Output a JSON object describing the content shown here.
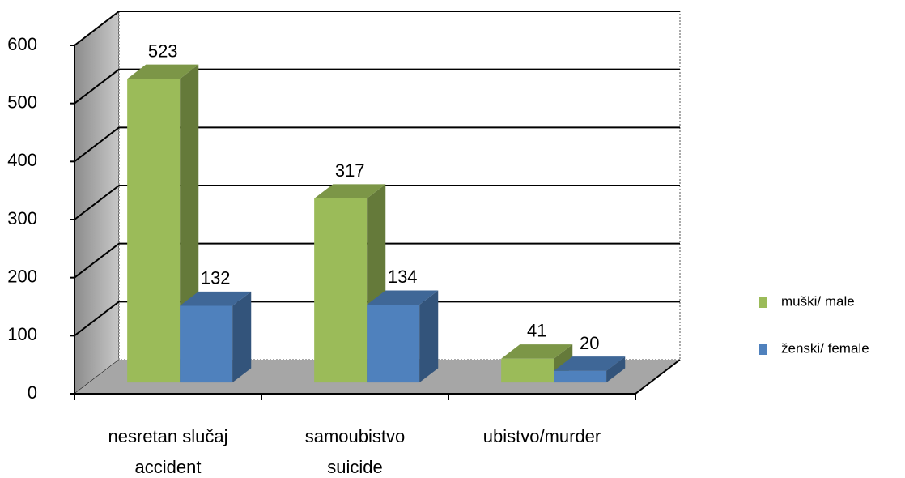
{
  "chart_data": {
    "type": "bar3d",
    "categories": [
      [
        "nesretan slučaj",
        "accident"
      ],
      [
        "samoubistvo",
        "suicide"
      ],
      [
        "ubistvo/murder"
      ]
    ],
    "series": [
      {
        "name": "muški/ male",
        "color": "#9bbb59",
        "values": [
          523,
          317,
          41
        ]
      },
      {
        "name": "ženski/ female",
        "color": "#4f81bd",
        "values": [
          132,
          134,
          20
        ]
      }
    ],
    "ylim": [
      0,
      600
    ],
    "yticks": [
      0,
      100,
      200,
      300,
      400,
      500,
      600
    ],
    "grid": true,
    "legend": "right"
  }
}
